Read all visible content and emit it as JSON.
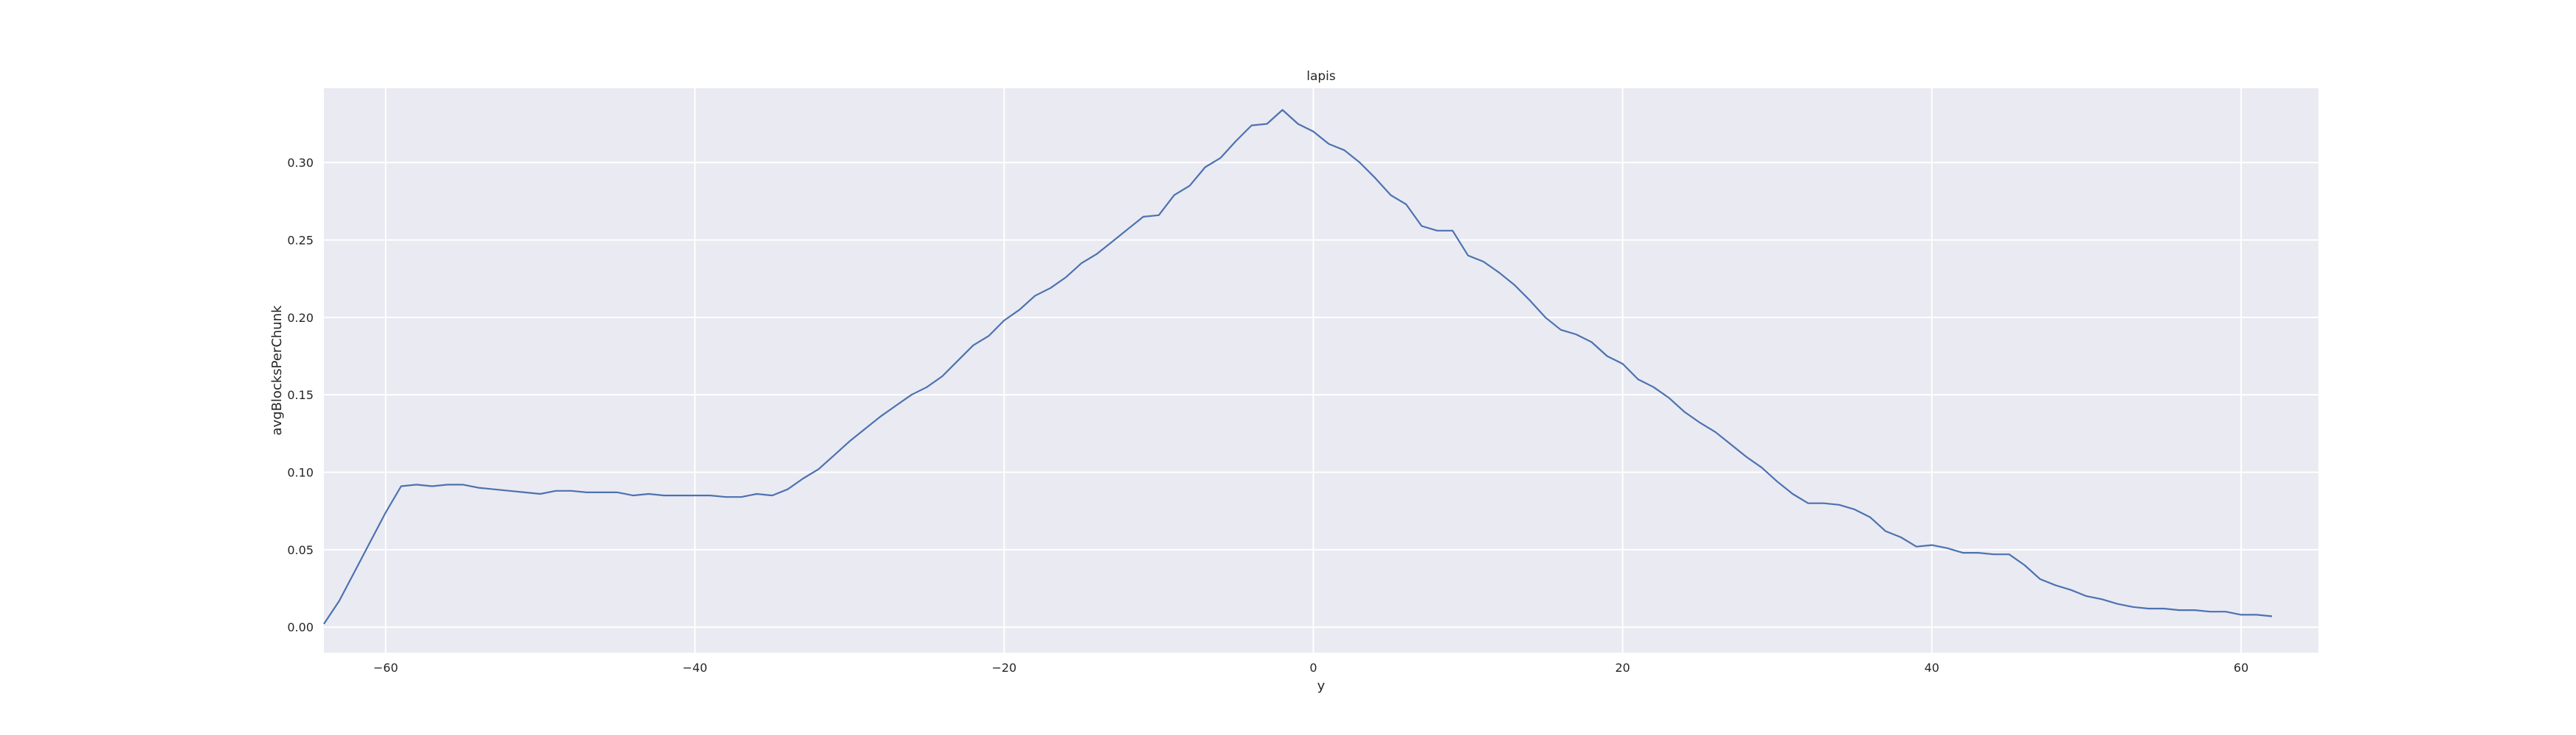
{
  "chart_data": {
    "type": "line",
    "title": "lapis",
    "xlabel": "y",
    "ylabel": "avgBlocksPerChunk",
    "xlim": [
      -64,
      65
    ],
    "ylim": [
      -0.0165,
      0.348
    ],
    "xticks": [
      -60,
      -40,
      -20,
      0,
      20,
      40,
      60
    ],
    "yticks": [
      0.0,
      0.05,
      0.1,
      0.15,
      0.2,
      0.25,
      0.3
    ],
    "xtick_labels": [
      "−60",
      "−40",
      "−20",
      "0",
      "20",
      "40",
      "60"
    ],
    "ytick_labels": [
      "0.00",
      "0.05",
      "0.10",
      "0.15",
      "0.20",
      "0.25",
      "0.30"
    ],
    "grid": true,
    "colors": {
      "background": "#eaeaf2",
      "grid": "#ffffff",
      "line": "#4c72b0"
    },
    "series": [
      {
        "values": [
          [
            -64,
            0.002
          ],
          [
            -63,
            0.017
          ],
          [
            -62,
            0.036
          ],
          [
            -61,
            0.055
          ],
          [
            -60,
            0.074
          ],
          [
            -59,
            0.091
          ],
          [
            -58,
            0.092
          ],
          [
            -57,
            0.091
          ],
          [
            -56,
            0.092
          ],
          [
            -55,
            0.092
          ],
          [
            -54,
            0.09
          ],
          [
            -53,
            0.089
          ],
          [
            -52,
            0.088
          ],
          [
            -51,
            0.087
          ],
          [
            -50,
            0.086
          ],
          [
            -49,
            0.088
          ],
          [
            -48,
            0.088
          ],
          [
            -47,
            0.087
          ],
          [
            -46,
            0.087
          ],
          [
            -45,
            0.087
          ],
          [
            -44,
            0.085
          ],
          [
            -43,
            0.086
          ],
          [
            -42,
            0.085
          ],
          [
            -41,
            0.085
          ],
          [
            -40,
            0.085
          ],
          [
            -39,
            0.085
          ],
          [
            -38,
            0.084
          ],
          [
            -37,
            0.084
          ],
          [
            -36,
            0.086
          ],
          [
            -35,
            0.085
          ],
          [
            -34,
            0.089
          ],
          [
            -33,
            0.096
          ],
          [
            -32,
            0.102
          ],
          [
            -31,
            0.111
          ],
          [
            -30,
            0.12
          ],
          [
            -29,
            0.128
          ],
          [
            -28,
            0.136
          ],
          [
            -27,
            0.143
          ],
          [
            -26,
            0.15
          ],
          [
            -25,
            0.155
          ],
          [
            -24,
            0.162
          ],
          [
            -23,
            0.172
          ],
          [
            -22,
            0.182
          ],
          [
            -21,
            0.188
          ],
          [
            -20,
            0.198
          ],
          [
            -19,
            0.205
          ],
          [
            -18,
            0.214
          ],
          [
            -17,
            0.219
          ],
          [
            -16,
            0.226
          ],
          [
            -15,
            0.235
          ],
          [
            -14,
            0.241
          ],
          [
            -13,
            0.249
          ],
          [
            -12,
            0.257
          ],
          [
            -11,
            0.265
          ],
          [
            -10,
            0.266
          ],
          [
            -9,
            0.279
          ],
          [
            -8,
            0.285
          ],
          [
            -7,
            0.297
          ],
          [
            -6,
            0.303
          ],
          [
            -5,
            0.314
          ],
          [
            -4,
            0.324
          ],
          [
            -3,
            0.325
          ],
          [
            -2,
            0.334
          ],
          [
            -1,
            0.325
          ],
          [
            0,
            0.32
          ],
          [
            1,
            0.312
          ],
          [
            2,
            0.308
          ],
          [
            3,
            0.3
          ],
          [
            4,
            0.29
          ],
          [
            5,
            0.279
          ],
          [
            6,
            0.273
          ],
          [
            7,
            0.259
          ],
          [
            8,
            0.256
          ],
          [
            9,
            0.256
          ],
          [
            10,
            0.24
          ],
          [
            11,
            0.236
          ],
          [
            12,
            0.229
          ],
          [
            13,
            0.221
          ],
          [
            14,
            0.211
          ],
          [
            15,
            0.2
          ],
          [
            16,
            0.192
          ],
          [
            17,
            0.189
          ],
          [
            18,
            0.184
          ],
          [
            19,
            0.175
          ],
          [
            20,
            0.17
          ],
          [
            21,
            0.16
          ],
          [
            22,
            0.155
          ],
          [
            23,
            0.148
          ],
          [
            24,
            0.139
          ],
          [
            25,
            0.132
          ],
          [
            26,
            0.126
          ],
          [
            27,
            0.118
          ],
          [
            28,
            0.11
          ],
          [
            29,
            0.103
          ],
          [
            30,
            0.094
          ],
          [
            31,
            0.086
          ],
          [
            32,
            0.08
          ],
          [
            33,
            0.08
          ],
          [
            34,
            0.079
          ],
          [
            35,
            0.076
          ],
          [
            36,
            0.071
          ],
          [
            37,
            0.062
          ],
          [
            38,
            0.058
          ],
          [
            39,
            0.052
          ],
          [
            40,
            0.053
          ],
          [
            41,
            0.051
          ],
          [
            42,
            0.048
          ],
          [
            43,
            0.048
          ],
          [
            44,
            0.047
          ],
          [
            45,
            0.047
          ],
          [
            46,
            0.04
          ],
          [
            47,
            0.031
          ],
          [
            48,
            0.027
          ],
          [
            49,
            0.024
          ],
          [
            50,
            0.02
          ],
          [
            51,
            0.018
          ],
          [
            52,
            0.015
          ],
          [
            53,
            0.013
          ],
          [
            54,
            0.012
          ],
          [
            55,
            0.012
          ],
          [
            56,
            0.011
          ],
          [
            57,
            0.011
          ],
          [
            58,
            0.01
          ],
          [
            59,
            0.01
          ],
          [
            60,
            0.008
          ],
          [
            61,
            0.008
          ],
          [
            62,
            0.007
          ]
        ]
      }
    ]
  }
}
